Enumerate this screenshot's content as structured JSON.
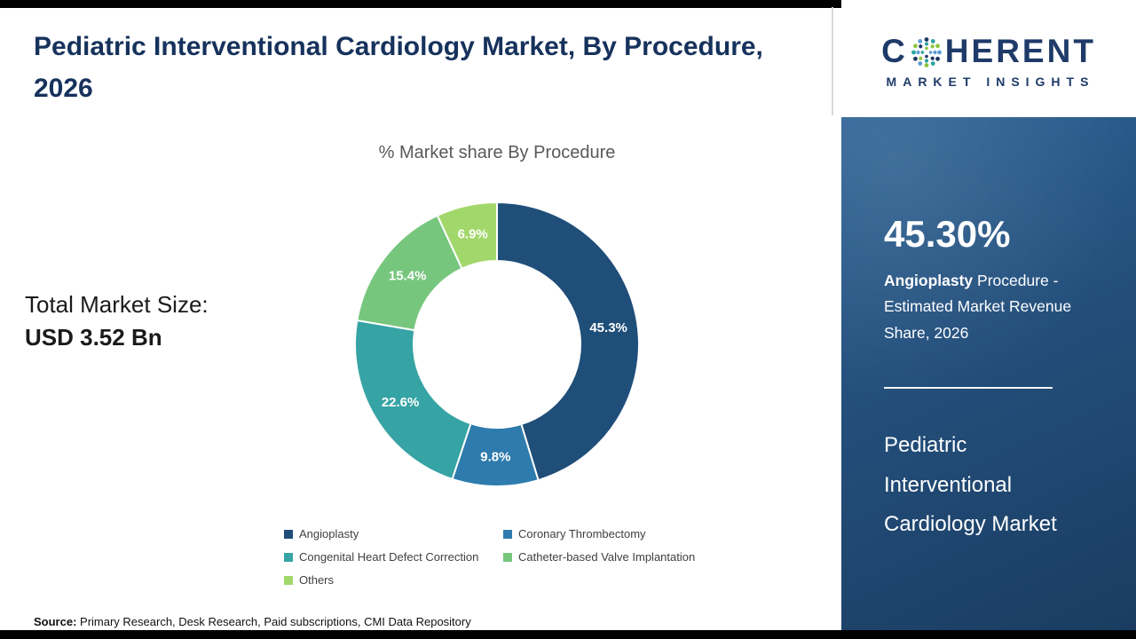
{
  "header": {
    "title": "Pediatric Interventional Cardiology Market, By Procedure, 2026"
  },
  "logo": {
    "word_start": "C",
    "word_rest": "HERENT",
    "tagline": "MARKET INSIGHTS",
    "brand_color": "#1e3a68",
    "globe_colors": [
      "#1f3864",
      "#2ba3a0",
      "#8dc63f",
      "#5b9bd5"
    ]
  },
  "market_size": {
    "label": "Total Market Size:",
    "value": "USD 3.52 Bn"
  },
  "chart_data": {
    "type": "pie",
    "subtype": "donut",
    "title": "% Market share By Procedure",
    "series": [
      {
        "label": "Angioplasty",
        "value": 45.3,
        "color": "#1f4e79"
      },
      {
        "label": "Coronary Thrombectomy",
        "value": 9.8,
        "color": "#2e7bad"
      },
      {
        "label": "Congenital Heart Defect Correction",
        "value": 22.6,
        "color": "#36a3a4"
      },
      {
        "label": "Catheter-based Valve Implantation",
        "value": 15.4,
        "color": "#77c67e"
      },
      {
        "label": "Others",
        "value": 6.9,
        "color": "#a2d86b"
      }
    ],
    "start_angle_deg": 0,
    "direction": "clockwise",
    "inner_radius_ratio": 0.59,
    "value_label_format": "percent",
    "legend_position": "bottom"
  },
  "sidebar": {
    "stat_value": "45.30%",
    "stat_highlight": "Angioplasty",
    "stat_rest": " Procedure - Estimated Market Revenue Share, 2026",
    "panel_title": "Pediatric Interventional Cardiology Market"
  },
  "source": {
    "label": "Source:",
    "text": " Primary Research, Desk Research, Paid subscriptions, CMI Data Repository"
  }
}
